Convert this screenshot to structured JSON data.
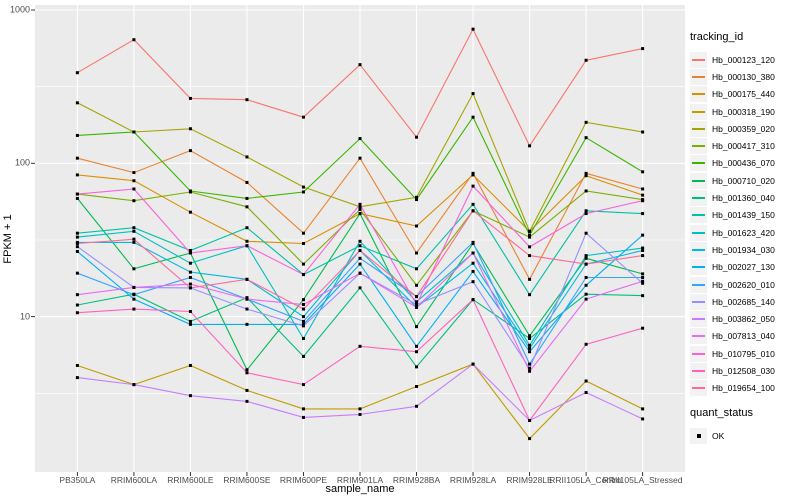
{
  "y_axis": {
    "label": "FPKM + 1"
  },
  "x_axis": {
    "label": "sample_name"
  },
  "legend": {
    "tracking_title": "tracking_id",
    "quant_title": "quant_status",
    "quant_value": "OK"
  },
  "chart_data": {
    "type": "line",
    "title": "",
    "xlabel": "sample_name",
    "ylabel": "FPKM + 1",
    "y_scale": "log10",
    "ylim": [
      1,
      1000
    ],
    "y_major_ticks": [
      1000,
      100,
      10
    ],
    "y_tick_labels": [
      "1000",
      "100",
      "10"
    ],
    "y_minor_gridlines": [
      316,
      31.6,
      3.16
    ],
    "grid": true,
    "panel_bg": "#ebebeb",
    "grid_color": "#ffffff",
    "point_color": "#000000",
    "legend_position": "right",
    "x_categories": [
      "PB350LA",
      "RRIM600LA",
      "RRIM600LE",
      "RRIM600SE",
      "RRIM600PE",
      "RRIM901LA",
      "RRIM928BA",
      "RRIM928LA",
      "RRIM928LE",
      "RRII105LA_Control",
      "RRII105LA_Stressed"
    ],
    "quant_status_values": [
      "OK"
    ],
    "series": [
      {
        "name": "Hb_000123_120",
        "color": "#F8766D",
        "values": [
          390,
          640,
          265,
          260,
          200,
          440,
          148,
          750,
          130,
          470,
          560
        ]
      },
      {
        "name": "Hb_000130_380",
        "color": "#EA8331",
        "values": [
          108,
          87,
          121,
          75,
          35,
          108,
          26,
          86,
          17.5,
          86,
          68
        ]
      },
      {
        "name": "Hb_000175_440",
        "color": "#D89000",
        "values": [
          84,
          77,
          48,
          31,
          30,
          47,
          39,
          84,
          36,
          83,
          62
        ]
      },
      {
        "name": "Hb_000318_190",
        "color": "#C09B00",
        "values": [
          4.8,
          3.6,
          4.8,
          3.3,
          2.5,
          2.5,
          3.5,
          4.9,
          1.6,
          3.8,
          2.5
        ]
      },
      {
        "name": "Hb_000359_020",
        "color": "#A3A500",
        "values": [
          248,
          160,
          168,
          110,
          70,
          52,
          60,
          285,
          36,
          185,
          160
        ]
      },
      {
        "name": "Hb_000417_310",
        "color": "#7CAE00",
        "values": [
          63,
          57,
          65,
          52,
          22,
          50,
          16,
          49,
          33,
          66,
          58
        ]
      },
      {
        "name": "Hb_000436_070",
        "color": "#39B600",
        "values": [
          152,
          160,
          66,
          59,
          65,
          145,
          58,
          200,
          34,
          147,
          88
        ]
      },
      {
        "name": "Hb_000710_020",
        "color": "#00BB4E",
        "values": [
          59,
          20.5,
          26,
          4.5,
          12.9,
          47,
          8.6,
          30,
          7.5,
          24,
          19
        ]
      },
      {
        "name": "Hb_001360_040",
        "color": "#00BF7D",
        "values": [
          11.9,
          14,
          9.3,
          13.3,
          5.5,
          15.4,
          4.7,
          12.9,
          7.2,
          14,
          13.7
        ]
      },
      {
        "name": "Hb_001439_150",
        "color": "#00C1A3",
        "values": [
          35,
          38,
          27,
          38,
          18.8,
          29,
          20.5,
          54,
          13.9,
          49,
          47
        ]
      },
      {
        "name": "Hb_001623_420",
        "color": "#00BFC4",
        "values": [
          33,
          36,
          22.3,
          29,
          7.2,
          31,
          12.5,
          26,
          6.5,
          25,
          28
        ]
      },
      {
        "name": "Hb_001934_030",
        "color": "#00BAE0",
        "values": [
          30.5,
          30.5,
          19.5,
          17.5,
          10,
          27,
          11.5,
          22.3,
          6.2,
          22,
          27
        ]
      },
      {
        "name": "Hb_002027_130",
        "color": "#00B0F6",
        "values": [
          26.6,
          13,
          8.9,
          8.9,
          8.9,
          22,
          6.4,
          19.7,
          5.9,
          16,
          34
        ]
      },
      {
        "name": "Hb_002620_010",
        "color": "#35A2FF",
        "values": [
          19.2,
          13.9,
          18,
          13,
          9.3,
          24,
          13.5,
          30.5,
          4.9,
          18,
          18
        ]
      },
      {
        "name": "Hb_002685_140",
        "color": "#9590FF",
        "values": [
          28.6,
          15.5,
          15.4,
          11.2,
          8.7,
          19.2,
          12,
          16.9,
          4.6,
          35,
          16.5
        ]
      },
      {
        "name": "Hb_003862_050",
        "color": "#C77CFF",
        "values": [
          4.0,
          3.6,
          3.05,
          2.8,
          2.2,
          2.3,
          2.6,
          4.9,
          2.1,
          3.2,
          2.15
        ]
      },
      {
        "name": "Hb_007813_040",
        "color": "#E76BF3",
        "values": [
          13.9,
          15.5,
          16.3,
          13,
          12,
          19.2,
          11.5,
          26,
          4.4,
          13,
          17
        ]
      },
      {
        "name": "Hb_010795_010",
        "color": "#FA62DB",
        "values": [
          63,
          68,
          26,
          29,
          18.8,
          54,
          12,
          71,
          28.5,
          47,
          57
        ]
      },
      {
        "name": "Hb_012508_030",
        "color": "#FF62BC",
        "values": [
          10.6,
          11.2,
          10.8,
          4.3,
          3.6,
          6.4,
          5.9,
          12.9,
          2.1,
          6.6,
          8.4
        ]
      },
      {
        "name": "Hb_019654_100",
        "color": "#FF6A98",
        "values": [
          30,
          32,
          15.4,
          17.5,
          11.2,
          27,
          13.5,
          49,
          25,
          22,
          25
        ]
      }
    ]
  }
}
